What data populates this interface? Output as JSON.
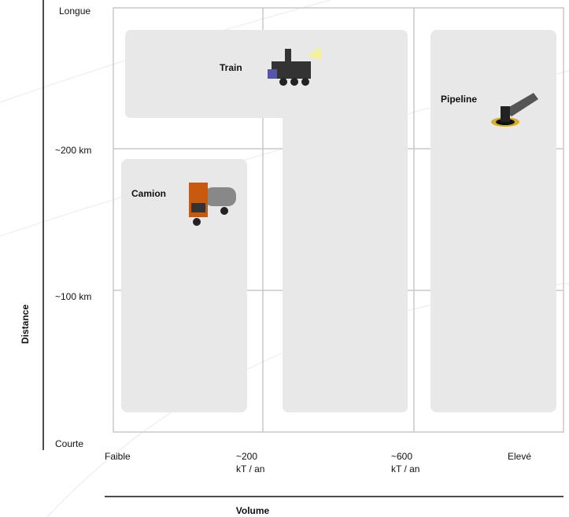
{
  "y_axis": {
    "title": "Distance",
    "labels": [
      "Longue",
      "~200 km",
      "~100 km",
      "Courte"
    ]
  },
  "x_axis": {
    "title": "Volume",
    "labels": [
      [
        "Faible"
      ],
      [
        "~200",
        "kT / an"
      ],
      [
        "~600",
        "kT / an"
      ],
      [
        "Elevé"
      ]
    ]
  },
  "regions": [
    {
      "label": "Train"
    },
    {
      "label": "Camion"
    },
    {
      "label": "Pipeline"
    }
  ]
}
